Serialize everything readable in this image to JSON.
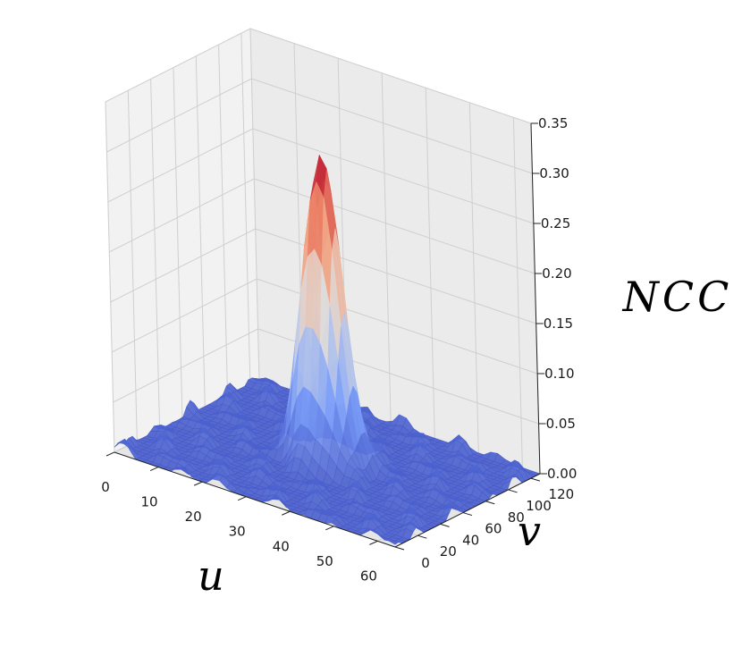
{
  "chart_data": {
    "type": "surface3d",
    "title": "",
    "xlabel": "u",
    "ylabel": "v",
    "zlabel": "NCC",
    "xlim": [
      0,
      64
    ],
    "ylim": [
      0,
      128
    ],
    "zlim": [
      0,
      0.35
    ],
    "x_ticks": [
      "0",
      "10",
      "20",
      "30",
      "40",
      "50",
      "60"
    ],
    "y_ticks": [
      "0",
      "20",
      "40",
      "60",
      "80",
      "100",
      "120"
    ],
    "z_ticks": [
      "0.00",
      "0.05",
      "0.10",
      "0.15",
      "0.20",
      "0.25",
      "0.30",
      "0.35"
    ],
    "peak": {
      "u": 32,
      "v": 64,
      "ncc": 0.31
    },
    "baseline_ncc": 0.0,
    "colormap": "coolwarm",
    "grid": true,
    "colors": {
      "low": "#3b4cc0",
      "mid": "#dddddd",
      "high": "#b40426"
    }
  }
}
